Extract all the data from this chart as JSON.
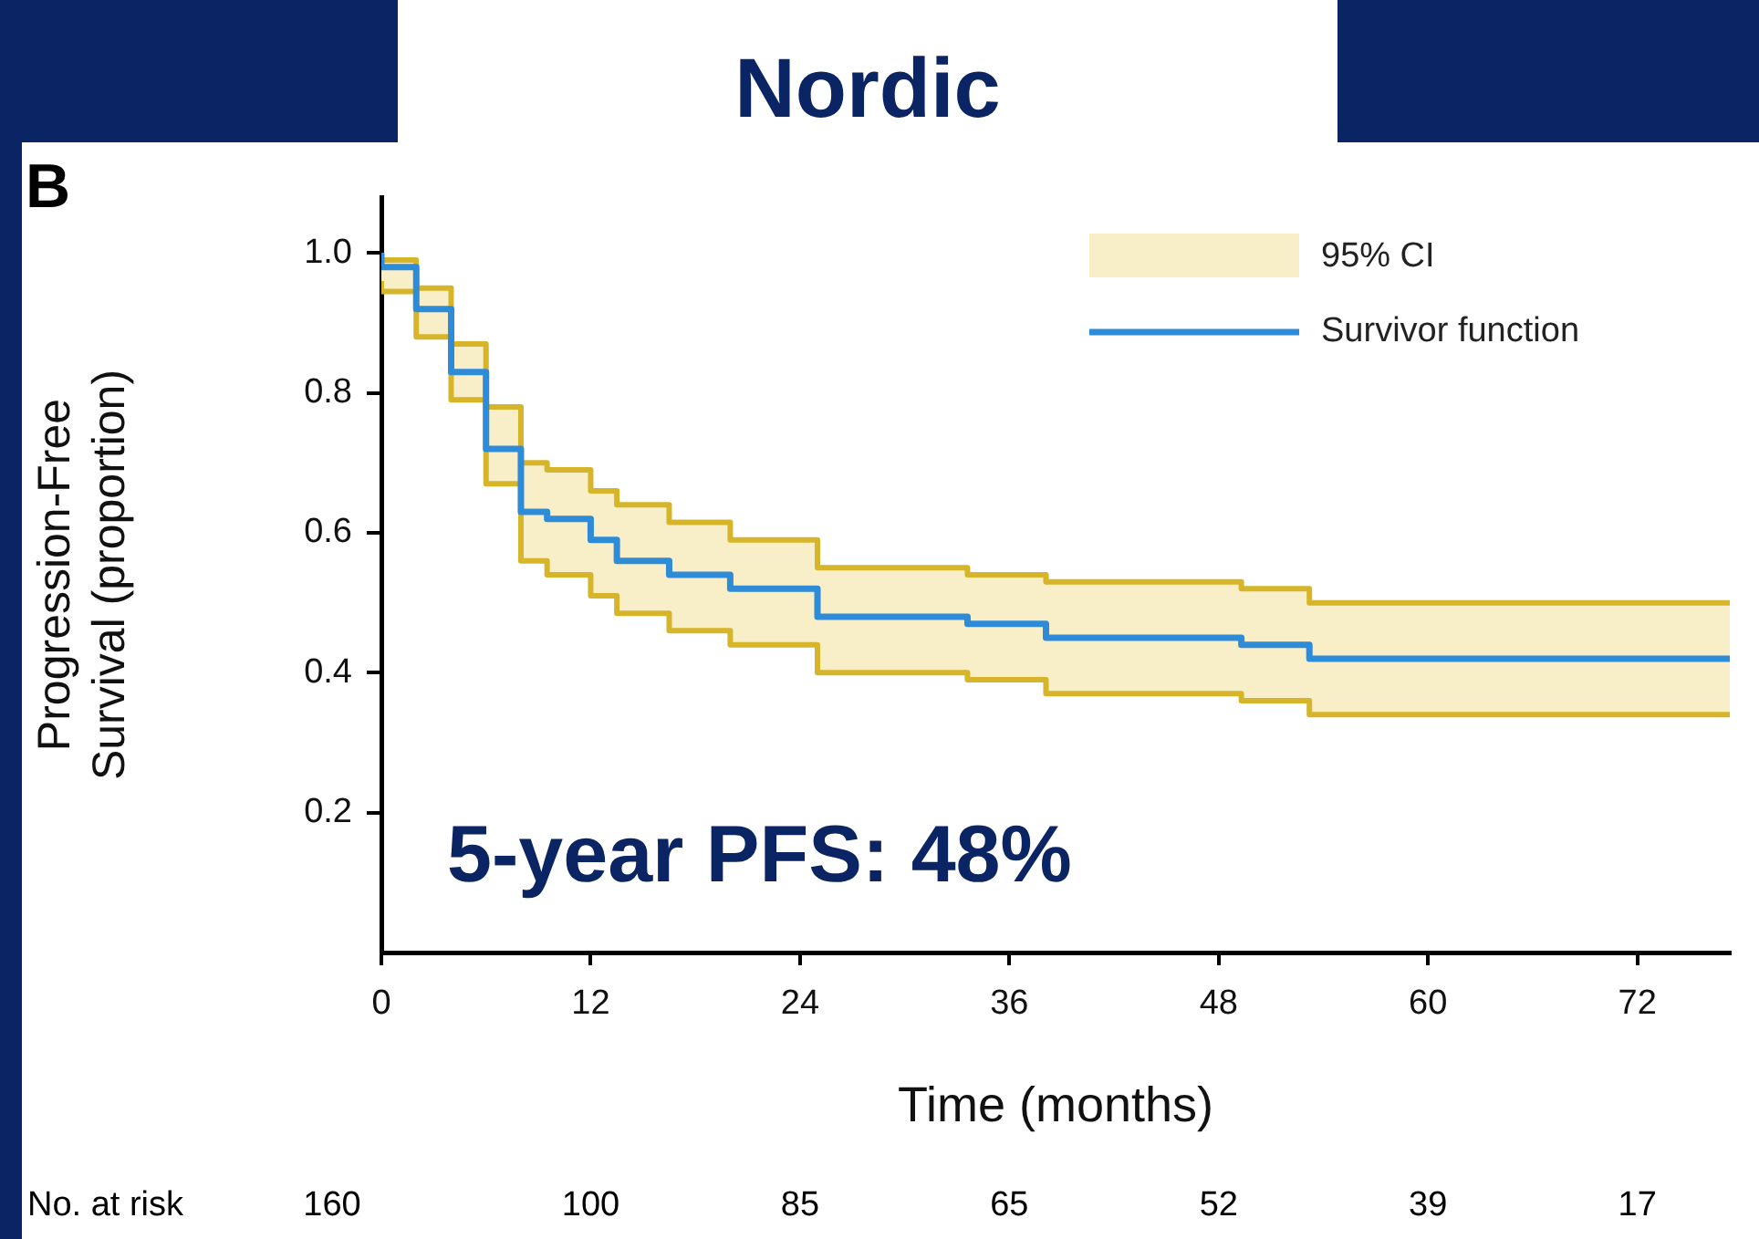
{
  "chart_data": {
    "type": "step",
    "title": "Nordic",
    "xlabel": "Time (months)",
    "ylabel": "Progression-Free Survival (proportion)",
    "x": [
      0,
      2,
      4,
      6,
      8,
      9.5,
      12,
      13.5,
      16.5,
      20,
      25,
      33.6,
      38.1,
      49.3,
      53.2,
      66.5,
      77.3
    ],
    "series": [
      {
        "name": "Survivor function",
        "color": "#2e8bd8",
        "values": [
          1.0,
          0.98,
          0.92,
          0.83,
          0.72,
          0.63,
          0.62,
          0.59,
          0.56,
          0.54,
          0.52,
          0.48,
          0.47,
          0.45,
          0.44,
          0.42,
          0.42
        ],
        "lower": [
          0.96,
          0.945,
          0.88,
          0.79,
          0.67,
          0.56,
          0.54,
          0.51,
          0.485,
          0.46,
          0.44,
          0.4,
          0.39,
          0.37,
          0.36,
          0.34,
          0.34
        ],
        "upper": [
          1.0,
          0.99,
          0.95,
          0.87,
          0.78,
          0.7,
          0.69,
          0.66,
          0.64,
          0.615,
          0.59,
          0.55,
          0.54,
          0.53,
          0.52,
          0.5,
          0.5
        ]
      },
      {
        "color": "#d6b52a",
        "values": [
          1.0,
          0.99,
          0.95,
          0.87,
          0.78,
          0.7,
          0.69,
          0.66,
          0.64,
          0.615,
          0.59,
          0.55,
          0.54,
          0.53,
          0.52,
          0.5,
          0.5
        ]
      },
      {
        "color": "#d6b52a",
        "values": [
          0.96,
          0.945,
          0.88,
          0.79,
          0.67,
          0.56,
          0.54,
          0.51,
          0.485,
          0.46,
          0.44,
          0.4,
          0.39,
          0.37,
          0.36,
          0.34,
          0.34
        ]
      }
    ],
    "xlim": [
      0,
      77.3
    ],
    "xticks": [
      0,
      12,
      24,
      36,
      48,
      60,
      72
    ],
    "ylim": [
      0,
      1.08
    ],
    "yticks": [
      0.2,
      0.4,
      0.6,
      0.8,
      {
        "value": 1.0,
        "label": "1.0"
      }
    ],
    "grid": false,
    "legend": "top right",
    "line_style": "solid",
    "marker": "none",
    "annotations": [
      "B",
      "95% CI",
      "5-year PFS: 48%",
      "No. at risk",
      "160",
      "100",
      "85",
      "65",
      "52",
      "39",
      "17"
    ]
  }
}
